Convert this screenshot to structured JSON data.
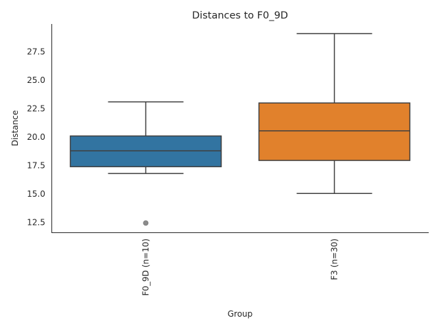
{
  "chart_data": {
    "type": "box",
    "title": "Distances to F0_9D",
    "xlabel": "Group",
    "ylabel": "Distance",
    "ylim": [
      11.63,
      29.94
    ],
    "yticks": [
      "12.5",
      "15.0",
      "17.5",
      "20.0",
      "22.5",
      "25.0",
      "27.5"
    ],
    "grid": false,
    "categories": [
      "F0_9D (n=10)",
      "F3 (n=30)"
    ],
    "boxes": [
      {
        "name": "F0_9D (n=10)",
        "whisker_low": 16.8,
        "q1": 17.4,
        "median": 18.8,
        "q3": 20.1,
        "whisker_high": 23.1,
        "outliers": [
          12.45
        ],
        "color": "#3274a1"
      },
      {
        "name": "F3 (n=30)",
        "whisker_low": 15.05,
        "q1": 17.95,
        "median": 20.55,
        "q3": 23.0,
        "whisker_high": 29.1,
        "outliers": [],
        "color": "#e1812c"
      }
    ]
  }
}
